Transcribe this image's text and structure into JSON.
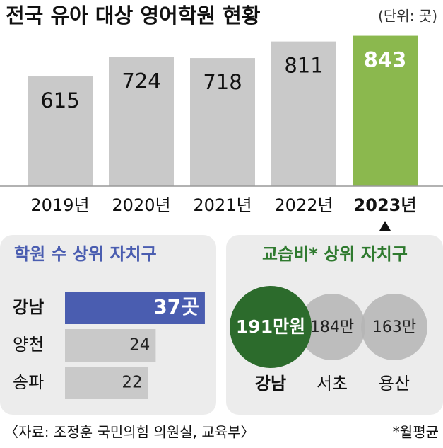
{
  "title": "전국 유아 대상 영어학원 현황",
  "unit": "(단위: 곳)",
  "source": "〈자료: 조정훈 국민의힘 의원실, 교육부〉",
  "note": "*월평균",
  "chart_data": [
    {
      "type": "bar",
      "categories": [
        "2019년",
        "2020년",
        "2021년",
        "2022년",
        "2023년"
      ],
      "values": [
        615,
        724,
        718,
        811,
        843
      ],
      "color": "#c9c9c9",
      "highlight": 4,
      "highlight_color": "#8bb84e"
    },
    {
      "type": "hbar",
      "title": "학원 수 상위 자치구",
      "title_color": "#4a5db0",
      "categories": [
        "강남",
        "양천",
        "송파"
      ],
      "values": [
        37,
        24,
        22
      ],
      "value_labels": [
        "37곳",
        "24",
        "22"
      ],
      "color": "#c9c9c9",
      "highlight": 0,
      "highlight_color": "#4a5db0"
    },
    {
      "type": "bubble",
      "title": "교습비* 상위 자치구",
      "title_color": "#2f7a2f",
      "categories": [
        "강남",
        "서초",
        "용산"
      ],
      "values": [
        191,
        184,
        163
      ],
      "value_labels": [
        "191만원",
        "184만",
        "163만"
      ],
      "color": "#b5b5b5",
      "highlight": 0,
      "highlight_color": "#2c6b2c"
    }
  ]
}
